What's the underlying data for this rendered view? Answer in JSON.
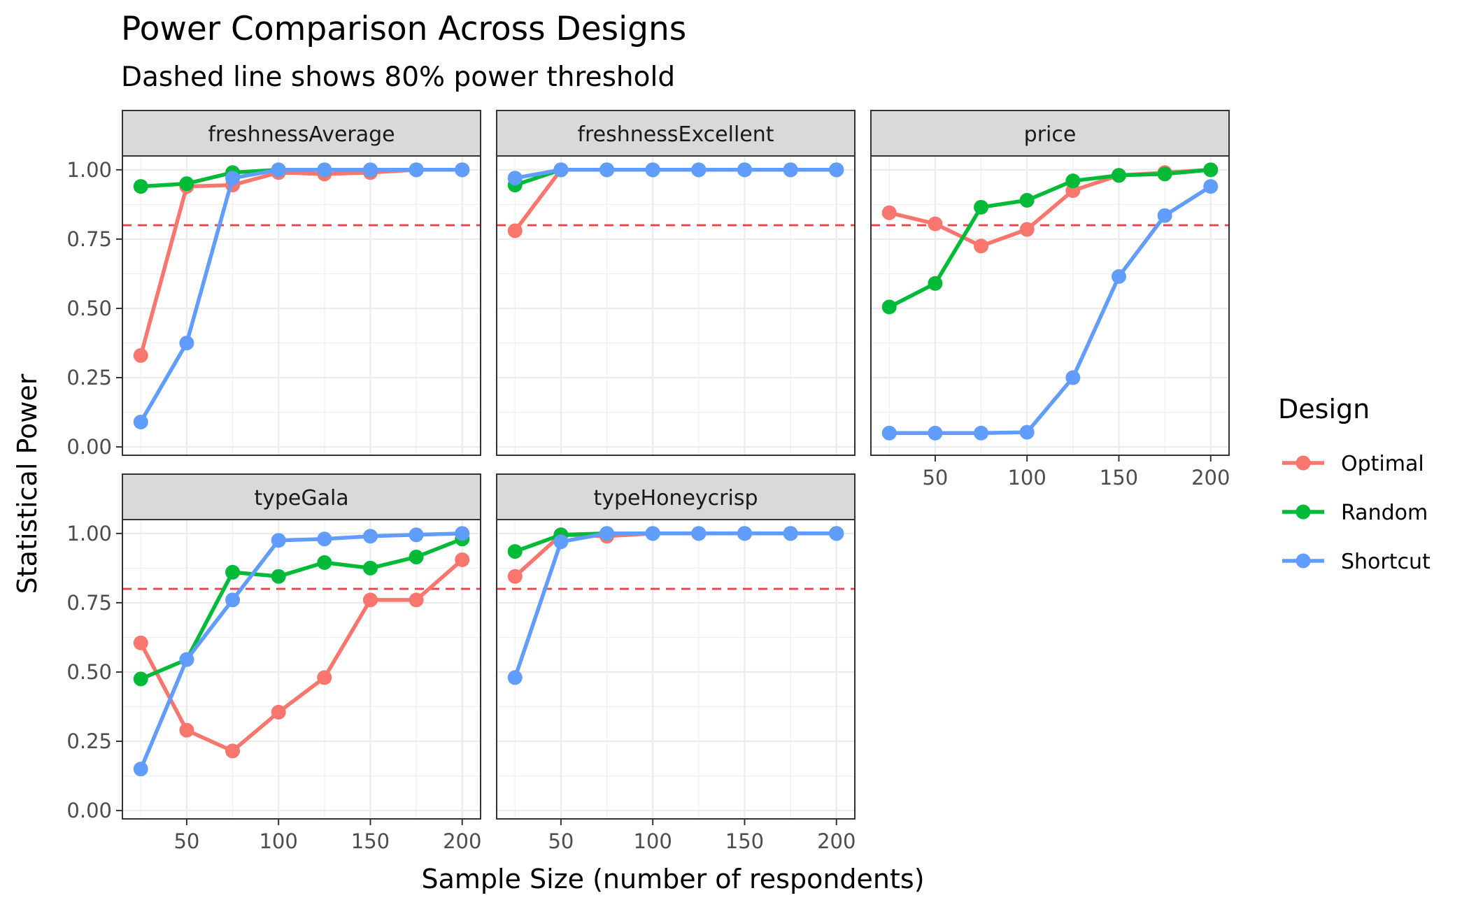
{
  "chart_data": {
    "type": "line",
    "title": "Power Comparison Across Designs",
    "subtitle": "Dashed line shows 80% power threshold",
    "xlabel": "Sample Size (number of respondents)",
    "ylabel": "Statistical Power",
    "x": [
      25,
      50,
      75,
      100,
      125,
      150,
      175,
      200
    ],
    "x_ticks": [
      50,
      100,
      150,
      200
    ],
    "y_ticks": [
      0,
      0.25,
      0.5,
      0.75,
      1.0
    ],
    "y_tick_labels": [
      "0.00",
      "0.25",
      "0.50",
      "0.75",
      "1.00"
    ],
    "xlim": [
      15,
      210
    ],
    "ylim": [
      -0.03,
      1.05
    ],
    "threshold": 0.8,
    "grid": true,
    "legend_position": "right",
    "legend_title": "Design",
    "series_styles": [
      {
        "name": "Optimal",
        "color": "#F8766D"
      },
      {
        "name": "Random",
        "color": "#00BA38"
      },
      {
        "name": "Shortcut",
        "color": "#619CFF"
      }
    ],
    "panels": [
      {
        "label": "freshnessAverage",
        "series": [
          {
            "name": "Optimal",
            "values": [
              0.33,
              0.94,
              0.945,
              0.99,
              0.985,
              0.99,
              1.0,
              1.0
            ]
          },
          {
            "name": "Random",
            "values": [
              0.94,
              0.95,
              0.99,
              1.0,
              1.0,
              1.0,
              1.0,
              1.0
            ]
          },
          {
            "name": "Shortcut",
            "values": [
              0.09,
              0.375,
              0.97,
              1.0,
              1.0,
              1.0,
              1.0,
              1.0
            ]
          }
        ]
      },
      {
        "label": "freshnessExcellent",
        "series": [
          {
            "name": "Optimal",
            "values": [
              0.78,
              1.0,
              1.0,
              1.0,
              1.0,
              1.0,
              1.0,
              1.0
            ]
          },
          {
            "name": "Random",
            "values": [
              0.945,
              1.0,
              1.0,
              1.0,
              1.0,
              1.0,
              1.0,
              1.0
            ]
          },
          {
            "name": "Shortcut",
            "values": [
              0.97,
              1.0,
              1.0,
              1.0,
              1.0,
              1.0,
              1.0,
              1.0
            ]
          }
        ]
      },
      {
        "label": "price",
        "series": [
          {
            "name": "Optimal",
            "values": [
              0.845,
              0.805,
              0.725,
              0.785,
              0.925,
              0.98,
              0.99,
              1.0
            ]
          },
          {
            "name": "Random",
            "values": [
              0.505,
              0.59,
              0.865,
              0.89,
              0.96,
              0.98,
              0.985,
              1.0
            ]
          },
          {
            "name": "Shortcut",
            "values": [
              0.05,
              0.05,
              0.05,
              0.053,
              0.25,
              0.615,
              0.835,
              0.94
            ]
          }
        ]
      },
      {
        "label": "typeGala",
        "series": [
          {
            "name": "Optimal",
            "values": [
              0.605,
              0.29,
              0.215,
              0.355,
              0.48,
              0.76,
              0.76,
              0.905
            ]
          },
          {
            "name": "Random",
            "values": [
              0.475,
              0.545,
              0.86,
              0.845,
              0.895,
              0.875,
              0.915,
              0.98
            ]
          },
          {
            "name": "Shortcut",
            "values": [
              0.15,
              0.545,
              0.76,
              0.975,
              0.98,
              0.99,
              0.995,
              1.0
            ]
          }
        ]
      },
      {
        "label": "typeHoneycrisp",
        "series": [
          {
            "name": "Optimal",
            "values": [
              0.845,
              0.995,
              0.99,
              1.0,
              1.0,
              1.0,
              1.0,
              1.0
            ]
          },
          {
            "name": "Random",
            "values": [
              0.935,
              0.995,
              1.0,
              1.0,
              1.0,
              1.0,
              1.0,
              1.0
            ]
          },
          {
            "name": "Shortcut",
            "values": [
              0.48,
              0.97,
              1.0,
              1.0,
              1.0,
              1.0,
              1.0,
              1.0
            ]
          }
        ]
      }
    ]
  }
}
